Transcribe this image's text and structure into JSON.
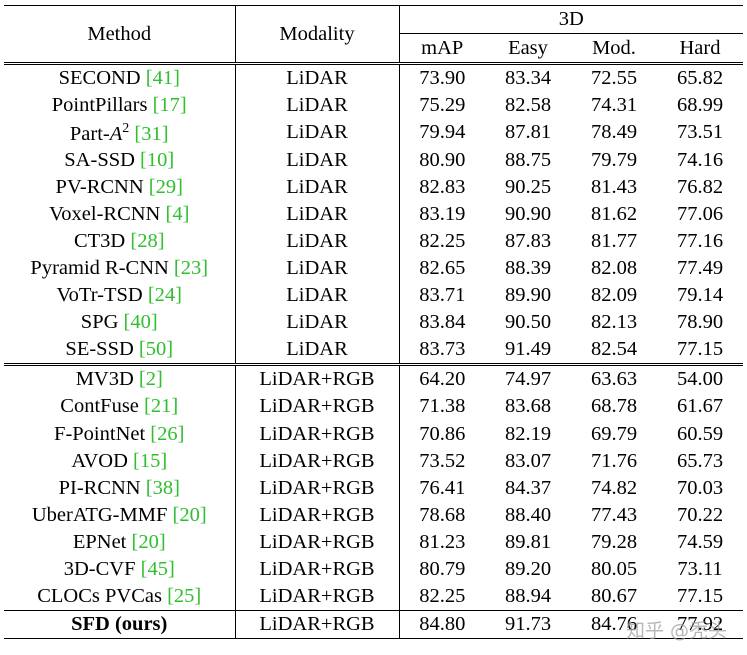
{
  "header": {
    "method": "Method",
    "modality": "Modality",
    "group": "3D",
    "cols": [
      "mAP",
      "Easy",
      "Mod.",
      "Hard"
    ]
  },
  "lidar_rows": [
    {
      "name": "SECOND",
      "ref": "41",
      "modality": "LiDAR",
      "vals": [
        "73.90",
        "83.34",
        "72.55",
        "65.82"
      ]
    },
    {
      "name": "PointPillars",
      "ref": "17",
      "modality": "LiDAR",
      "vals": [
        "75.29",
        "82.58",
        "74.31",
        "68.99"
      ]
    },
    {
      "name": "Part-",
      "sup_var": "A",
      "sup": "2",
      "ref": "31",
      "modality": "LiDAR",
      "vals": [
        "79.94",
        "87.81",
        "78.49",
        "73.51"
      ]
    },
    {
      "name": "SA-SSD",
      "ref": "10",
      "modality": "LiDAR",
      "vals": [
        "80.90",
        "88.75",
        "79.79",
        "74.16"
      ]
    },
    {
      "name": "PV-RCNN",
      "ref": "29",
      "modality": "LiDAR",
      "vals": [
        "82.83",
        "90.25",
        "81.43",
        "76.82"
      ]
    },
    {
      "name": "Voxel-RCNN",
      "ref": "4",
      "modality": "LiDAR",
      "vals": [
        "83.19",
        "90.90",
        "81.62",
        "77.06"
      ]
    },
    {
      "name": "CT3D",
      "ref": "28",
      "modality": "LiDAR",
      "vals": [
        "82.25",
        "87.83",
        "81.77",
        "77.16"
      ]
    },
    {
      "name": "Pyramid R-CNN",
      "ref": "23",
      "modality": "LiDAR",
      "vals": [
        "82.65",
        "88.39",
        "82.08",
        "77.49"
      ]
    },
    {
      "name": "VoTr-TSD",
      "ref": "24",
      "modality": "LiDAR",
      "vals": [
        "83.71",
        "89.90",
        "82.09",
        "79.14"
      ],
      "bold": [
        false,
        false,
        false,
        true
      ]
    },
    {
      "name": "SPG",
      "ref": "40",
      "modality": "LiDAR",
      "vals": [
        "83.84",
        "90.50",
        "82.13",
        "78.90"
      ]
    },
    {
      "name": "SE-SSD",
      "ref": "50",
      "modality": "LiDAR",
      "vals": [
        "83.73",
        "91.49",
        "82.54",
        "77.15"
      ]
    }
  ],
  "fusion_rows": [
    {
      "name": "MV3D",
      "ref": "2",
      "modality": "LiDAR+RGB",
      "vals": [
        "64.20",
        "74.97",
        "63.63",
        "54.00"
      ]
    },
    {
      "name": "ContFuse",
      "ref": "21",
      "modality": "LiDAR+RGB",
      "vals": [
        "71.38",
        "83.68",
        "68.78",
        "61.67"
      ]
    },
    {
      "name": "F-PointNet",
      "ref": "26",
      "modality": "LiDAR+RGB",
      "vals": [
        "70.86",
        "82.19",
        "69.79",
        "60.59"
      ]
    },
    {
      "name": "AVOD",
      "ref": "15",
      "modality": "LiDAR+RGB",
      "vals": [
        "73.52",
        "83.07",
        "71.76",
        "65.73"
      ]
    },
    {
      "name": "PI-RCNN",
      "ref": "38",
      "modality": "LiDAR+RGB",
      "vals": [
        "76.41",
        "84.37",
        "74.82",
        "70.03"
      ]
    },
    {
      "name": "UberATG-MMF",
      "ref": "20",
      "modality": "LiDAR+RGB",
      "vals": [
        "78.68",
        "88.40",
        "77.43",
        "70.22"
      ]
    },
    {
      "name": "EPNet",
      "ref": "20",
      "modality": "LiDAR+RGB",
      "vals": [
        "81.23",
        "89.81",
        "79.28",
        "74.59"
      ]
    },
    {
      "name": "3D-CVF",
      "ref": "45",
      "modality": "LiDAR+RGB",
      "vals": [
        "80.79",
        "89.20",
        "80.05",
        "73.11"
      ]
    },
    {
      "name": "CLOCs PVCas",
      "ref": "25",
      "modality": "LiDAR+RGB",
      "vals": [
        "82.25",
        "88.94",
        "80.67",
        "77.15"
      ]
    }
  ],
  "ours_row": {
    "name": "SFD (ours)",
    "modality": "LiDAR+RGB",
    "vals": [
      "84.80",
      "91.73",
      "84.76",
      "77.92"
    ],
    "bold": [
      true,
      true,
      true,
      false
    ]
  },
  "watermark": "知乎 @秃头"
}
